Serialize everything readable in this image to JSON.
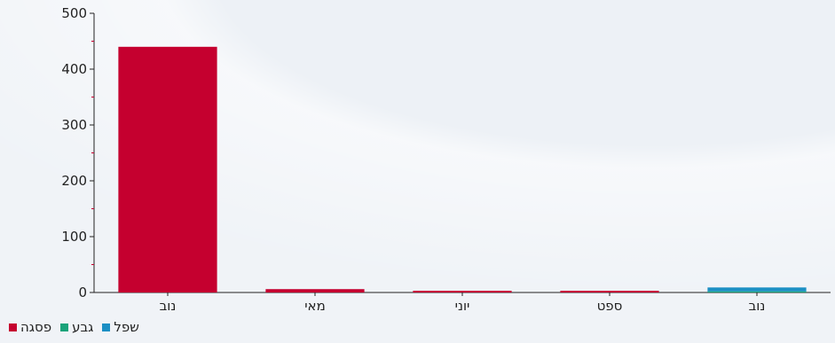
{
  "chart_data": {
    "type": "bar",
    "categories": [
      "נוב",
      "מאי",
      "יוני",
      "ספט",
      "נוב"
    ],
    "series": [
      {
        "name": "פסגה",
        "color": "#c5002f",
        "values": [
          440,
          6,
          3,
          3,
          0
        ]
      },
      {
        "name": "גבע",
        "color": "#1aa37a",
        "values": [
          0,
          0,
          0,
          0,
          2
        ]
      },
      {
        "name": "שפל",
        "color": "#1c8fc4",
        "values": [
          0,
          0,
          0,
          0,
          7
        ]
      }
    ],
    "yticks": [
      "0",
      "100",
      "200",
      "300",
      "400",
      "500"
    ],
    "ylim": [
      0,
      500
    ],
    "stacked": true,
    "grid": false,
    "legend_position": "bottom-left"
  }
}
